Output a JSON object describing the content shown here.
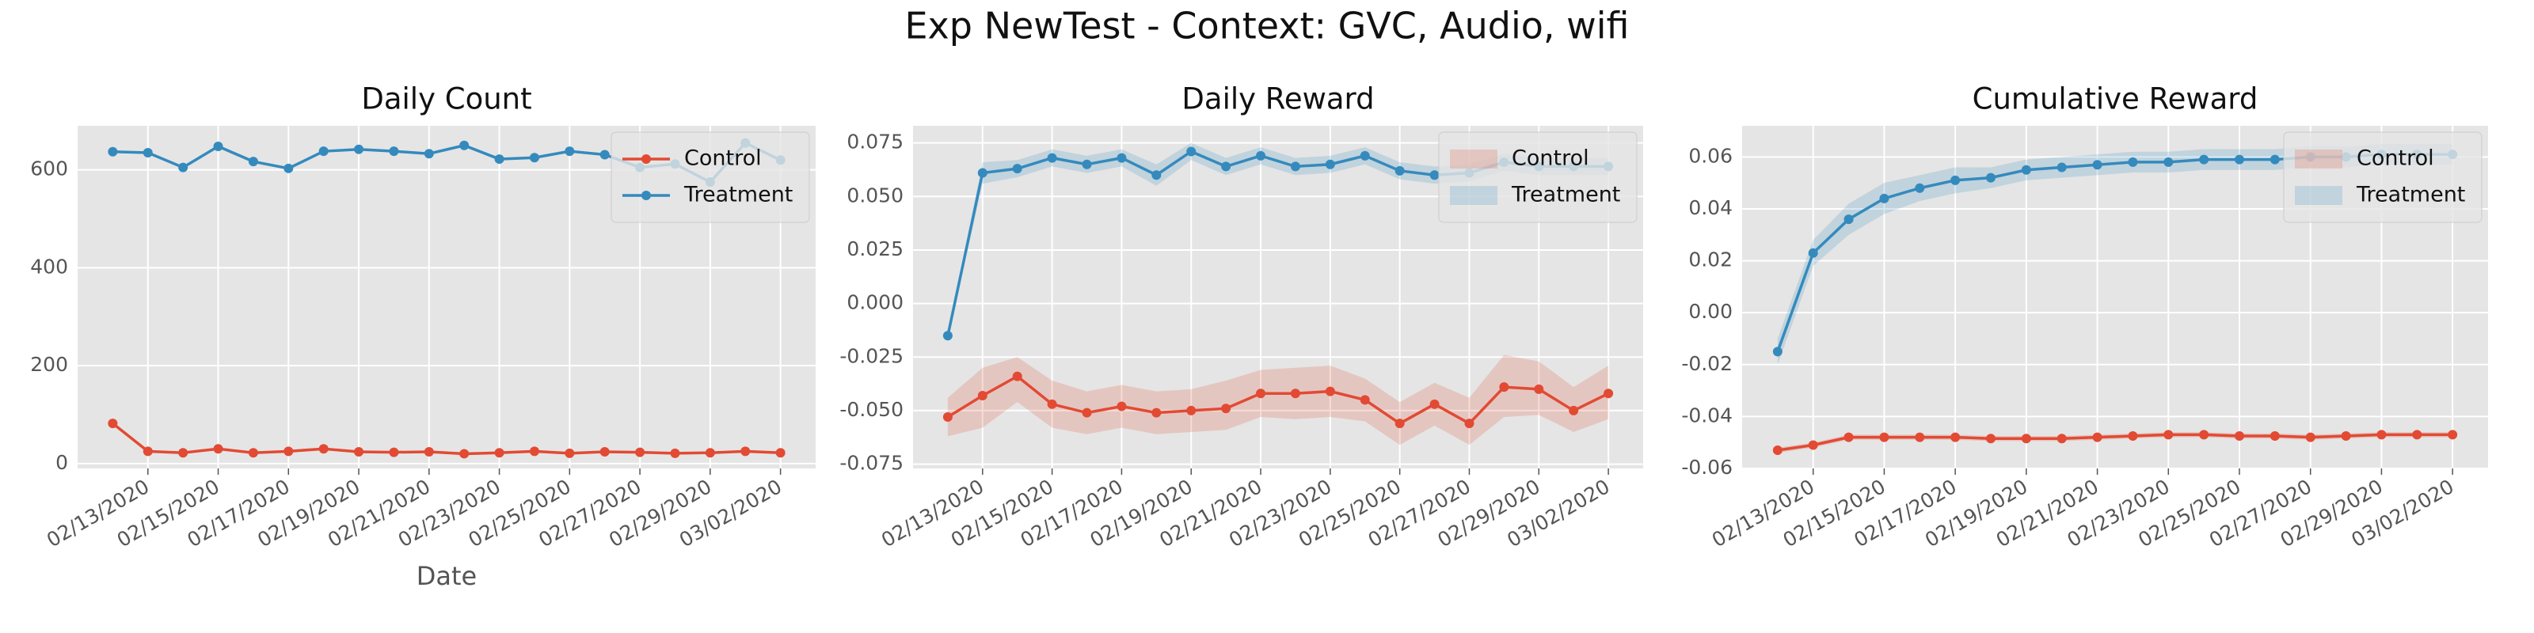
{
  "title": "Exp NewTest - Context: GVC, Audio, wifi",
  "chart_data": [
    {
      "type": "line",
      "title": "Daily Count",
      "xlabel": "Date",
      "legend": "upper right",
      "legend_style": "line",
      "grid": true,
      "x": [
        "02/12/2020",
        "02/13/2020",
        "02/14/2020",
        "02/15/2020",
        "02/16/2020",
        "02/17/2020",
        "02/18/2020",
        "02/19/2020",
        "02/20/2020",
        "02/21/2020",
        "02/22/2020",
        "02/23/2020",
        "02/24/2020",
        "02/25/2020",
        "02/26/2020",
        "02/27/2020",
        "02/28/2020",
        "02/29/2020",
        "03/01/2020",
        "03/02/2020"
      ],
      "xlim": [
        "02/11/2020",
        "03/03/2020"
      ],
      "xticks": [
        "02/13/2020",
        "02/15/2020",
        "02/17/2020",
        "02/19/2020",
        "02/21/2020",
        "02/23/2020",
        "02/25/2020",
        "02/27/2020",
        "02/29/2020",
        "03/02/2020"
      ],
      "ylim": [
        -10,
        690
      ],
      "yticks": [
        0,
        200,
        400,
        600
      ],
      "series": [
        {
          "name": "Control",
          "color": "#e24a33",
          "values": [
            82,
            25,
            22,
            30,
            22,
            25,
            30,
            24,
            23,
            24,
            20,
            22,
            25,
            21,
            24,
            23,
            21,
            22,
            25,
            22
          ]
        },
        {
          "name": "Treatment",
          "color": "#348abd",
          "values": [
            637,
            635,
            605,
            648,
            617,
            603,
            638,
            642,
            638,
            633,
            650,
            622,
            625,
            638,
            631,
            605,
            612,
            575,
            655,
            620
          ]
        }
      ]
    },
    {
      "type": "line",
      "title": "Daily Reward",
      "legend": "upper right",
      "legend_style": "patch",
      "grid": true,
      "x": [
        "02/12/2020",
        "02/13/2020",
        "02/14/2020",
        "02/15/2020",
        "02/16/2020",
        "02/17/2020",
        "02/18/2020",
        "02/19/2020",
        "02/20/2020",
        "02/21/2020",
        "02/22/2020",
        "02/23/2020",
        "02/24/2020",
        "02/25/2020",
        "02/26/2020",
        "02/27/2020",
        "02/28/2020",
        "02/29/2020",
        "03/01/2020",
        "03/02/2020"
      ],
      "xlim": [
        "02/11/2020",
        "03/03/2020"
      ],
      "xticks": [
        "02/13/2020",
        "02/15/2020",
        "02/17/2020",
        "02/19/2020",
        "02/21/2020",
        "02/23/2020",
        "02/25/2020",
        "02/27/2020",
        "02/29/2020",
        "03/02/2020"
      ],
      "ylim": [
        -0.077,
        0.083
      ],
      "yticks": [
        {
          "value": -0.075,
          "label": "-0.075"
        },
        {
          "value": -0.05,
          "label": "-0.050"
        },
        {
          "value": -0.025,
          "label": "-0.025"
        },
        {
          "value": 0,
          "label": "0.000"
        },
        {
          "value": 0.025,
          "label": "0.025"
        },
        {
          "value": 0.05,
          "label": "0.050"
        },
        {
          "value": 0.075,
          "label": "0.075"
        }
      ],
      "series": [
        {
          "name": "Control",
          "color": "#e24a33",
          "values": [
            -0.053,
            -0.043,
            -0.034,
            -0.047,
            -0.051,
            -0.048,
            -0.051,
            -0.05,
            -0.049,
            -0.042,
            -0.042,
            -0.041,
            -0.045,
            -0.056,
            -0.047,
            -0.056,
            -0.039,
            -0.04,
            -0.05,
            -0.042
          ],
          "lower": [
            -0.062,
            -0.058,
            -0.046,
            -0.058,
            -0.061,
            -0.058,
            -0.061,
            -0.06,
            -0.059,
            -0.053,
            -0.054,
            -0.053,
            -0.055,
            -0.066,
            -0.057,
            -0.066,
            -0.053,
            -0.052,
            -0.06,
            -0.054
          ],
          "upper": [
            -0.044,
            -0.03,
            -0.025,
            -0.036,
            -0.041,
            -0.038,
            -0.041,
            -0.04,
            -0.036,
            -0.031,
            -0.03,
            -0.029,
            -0.035,
            -0.046,
            -0.037,
            -0.044,
            -0.024,
            -0.027,
            -0.039,
            -0.029
          ]
        },
        {
          "name": "Treatment",
          "color": "#348abd",
          "values": [
            -0.015,
            0.061,
            0.063,
            0.068,
            0.065,
            0.068,
            0.06,
            0.071,
            0.064,
            0.069,
            0.064,
            0.065,
            0.069,
            0.062,
            0.06,
            0.061,
            0.066,
            0.064,
            0.064,
            0.064
          ],
          "lower": [
            -0.016,
            0.056,
            0.059,
            0.064,
            0.061,
            0.064,
            0.055,
            0.067,
            0.06,
            0.065,
            0.06,
            0.061,
            0.065,
            0.058,
            0.056,
            0.057,
            0.062,
            0.06,
            0.06,
            0.06
          ],
          "upper": [
            -0.014,
            0.066,
            0.067,
            0.072,
            0.069,
            0.072,
            0.065,
            0.075,
            0.068,
            0.073,
            0.068,
            0.069,
            0.073,
            0.066,
            0.064,
            0.065,
            0.07,
            0.068,
            0.068,
            0.068
          ]
        }
      ]
    },
    {
      "type": "line",
      "title": "Cumulative Reward",
      "legend": "upper right",
      "legend_style": "patch",
      "grid": true,
      "x": [
        "02/12/2020",
        "02/13/2020",
        "02/14/2020",
        "02/15/2020",
        "02/16/2020",
        "02/17/2020",
        "02/18/2020",
        "02/19/2020",
        "02/20/2020",
        "02/21/2020",
        "02/22/2020",
        "02/23/2020",
        "02/24/2020",
        "02/25/2020",
        "02/26/2020",
        "02/27/2020",
        "02/28/2020",
        "02/29/2020",
        "03/01/2020",
        "03/02/2020"
      ],
      "xlim": [
        "02/11/2020",
        "03/03/2020"
      ],
      "xticks": [
        "02/13/2020",
        "02/15/2020",
        "02/17/2020",
        "02/19/2020",
        "02/21/2020",
        "02/23/2020",
        "02/25/2020",
        "02/27/2020",
        "02/29/2020",
        "03/02/2020"
      ],
      "ylim": [
        -0.06,
        0.072
      ],
      "yticks": [
        -0.06,
        -0.04,
        -0.02,
        {
          "value": 0,
          "label": "0.00"
        },
        0.02,
        0.04,
        0.06
      ],
      "series": [
        {
          "name": "Control",
          "color": "#e24a33",
          "values": [
            -0.053,
            -0.051,
            -0.048,
            -0.048,
            -0.048,
            -0.048,
            -0.0485,
            -0.0485,
            -0.0485,
            -0.048,
            -0.0475,
            -0.047,
            -0.047,
            -0.0475,
            -0.0475,
            -0.048,
            -0.0475,
            -0.047,
            -0.047,
            -0.047
          ],
          "lower": [
            -0.054,
            -0.052,
            -0.049,
            -0.049,
            -0.049,
            -0.049,
            -0.0495,
            -0.0495,
            -0.0495,
            -0.049,
            -0.0485,
            -0.048,
            -0.048,
            -0.0485,
            -0.0485,
            -0.049,
            -0.0485,
            -0.048,
            -0.048,
            -0.048
          ],
          "upper": [
            -0.052,
            -0.05,
            -0.047,
            -0.047,
            -0.047,
            -0.047,
            -0.0475,
            -0.0475,
            -0.0475,
            -0.047,
            -0.0465,
            -0.046,
            -0.046,
            -0.0465,
            -0.0465,
            -0.047,
            -0.0465,
            -0.046,
            -0.046,
            -0.046
          ]
        },
        {
          "name": "Treatment",
          "color": "#348abd",
          "values": [
            -0.015,
            0.023,
            0.036,
            0.044,
            0.048,
            0.051,
            0.052,
            0.055,
            0.056,
            0.057,
            0.058,
            0.058,
            0.059,
            0.059,
            0.059,
            0.06,
            0.06,
            0.061,
            0.061,
            0.061
          ],
          "lower": [
            -0.02,
            0.018,
            0.03,
            0.038,
            0.043,
            0.046,
            0.048,
            0.051,
            0.052,
            0.053,
            0.054,
            0.054,
            0.055,
            0.055,
            0.055,
            0.056,
            0.056,
            0.057,
            0.057,
            0.057
          ],
          "upper": [
            -0.01,
            0.028,
            0.042,
            0.05,
            0.053,
            0.056,
            0.056,
            0.059,
            0.06,
            0.061,
            0.062,
            0.062,
            0.063,
            0.063,
            0.063,
            0.064,
            0.064,
            0.065,
            0.065,
            0.065
          ]
        }
      ]
    }
  ]
}
